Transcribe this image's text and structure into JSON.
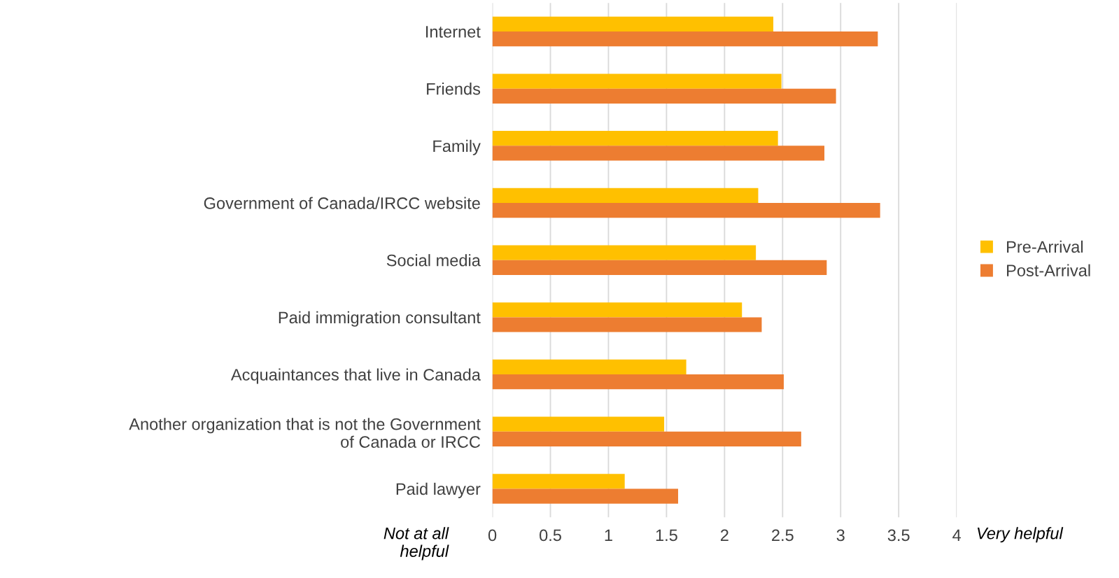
{
  "chart_data": {
    "type": "bar",
    "orientation": "horizontal",
    "categories": [
      "Internet",
      "Friends",
      "Family",
      "Government of Canada/IRCC website",
      "Social media",
      "Paid immigration consultant",
      "Acquaintances that live in Canada",
      "Another organization that is not the Government of Canada or IRCC",
      "Paid lawyer"
    ],
    "series": [
      {
        "name": "Pre-Arrival",
        "color": "#ffc000",
        "values": [
          2.42,
          2.49,
          2.46,
          2.29,
          2.27,
          2.15,
          1.67,
          1.48,
          1.14
        ]
      },
      {
        "name": "Post-Arrival",
        "color": "#ed7d31",
        "values": [
          3.32,
          2.96,
          2.86,
          3.34,
          2.88,
          2.32,
          2.51,
          2.66,
          1.6
        ]
      }
    ],
    "xlim": [
      0,
      4
    ],
    "xticks": [
      0,
      0.5,
      1,
      1.5,
      2,
      2.5,
      3,
      3.5,
      4
    ],
    "grid": "x",
    "legend": "right",
    "annotations": [
      "Not at all helpful",
      "Very helpful"
    ]
  }
}
